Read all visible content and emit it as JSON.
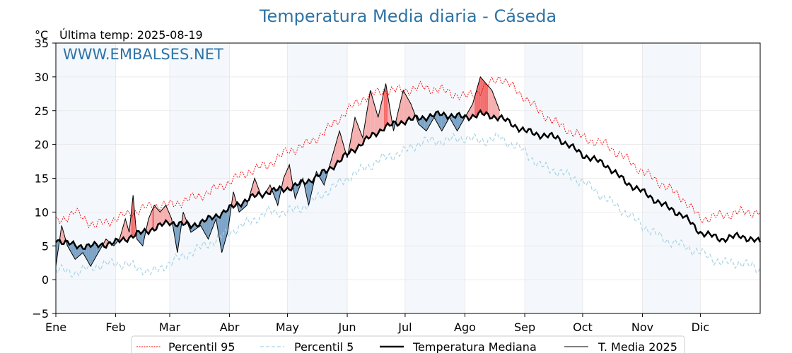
{
  "chart_data": {
    "type": "line",
    "title": "Temperatura Media diaria - Cáseda",
    "unit_label": "°C",
    "last_temp_label": "Última temp: 2025-08-19",
    "watermark": "WWW.EMBALSES.NET",
    "ylim": [
      -5,
      35
    ],
    "y_ticks": [
      -5,
      0,
      5,
      10,
      15,
      20,
      25,
      30,
      35
    ],
    "y_tick_labels": [
      "−5",
      "0",
      "5",
      "10",
      "15",
      "20",
      "25",
      "30",
      "35"
    ],
    "xlim_days": [
      0,
      365
    ],
    "month_labels": [
      "Ene",
      "Feb",
      "Mar",
      "Abr",
      "May",
      "Jun",
      "Jul",
      "Ago",
      "Sep",
      "Oct",
      "Nov",
      "Dic"
    ],
    "month_starts": [
      0,
      31,
      59,
      90,
      120,
      151,
      181,
      212,
      243,
      273,
      304,
      334,
      365
    ],
    "grid": true,
    "legend_position": "bottom-center",
    "colors": {
      "title": "#2e74a6",
      "watermark": "#2e74a6",
      "p95": "#ff0000",
      "p5": "#a9d3e3",
      "median": "#000000",
      "current": "#000000",
      "above_fill": "#f4a6a6",
      "above_fill_strong": "#f25c5c",
      "below_fill": "#6f99c0",
      "month_band": "#dce9f5"
    },
    "series": [
      {
        "name": "Percentil 95",
        "key": "p95",
        "style": "dotted",
        "anchors": [
          [
            0,
            8.5
          ],
          [
            10,
            10
          ],
          [
            20,
            8
          ],
          [
            31,
            9
          ],
          [
            40,
            10
          ],
          [
            50,
            11
          ],
          [
            59,
            11
          ],
          [
            70,
            12
          ],
          [
            80,
            13
          ],
          [
            90,
            14.5
          ],
          [
            100,
            16
          ],
          [
            110,
            17
          ],
          [
            120,
            19
          ],
          [
            130,
            20
          ],
          [
            140,
            22
          ],
          [
            151,
            25
          ],
          [
            160,
            27
          ],
          [
            170,
            28
          ],
          [
            181,
            28
          ],
          [
            190,
            28.5
          ],
          [
            200,
            28
          ],
          [
            212,
            27
          ],
          [
            220,
            28
          ],
          [
            230,
            30
          ],
          [
            243,
            27
          ],
          [
            250,
            25
          ],
          [
            260,
            23
          ],
          [
            273,
            21
          ],
          [
            285,
            20
          ],
          [
            295,
            18
          ],
          [
            304,
            16
          ],
          [
            315,
            14
          ],
          [
            325,
            12
          ],
          [
            334,
            9
          ],
          [
            345,
            9.5
          ],
          [
            355,
            10
          ],
          [
            365,
            10
          ]
        ]
      },
      {
        "name": "Percentil 5",
        "key": "p5",
        "style": "dashed",
        "anchors": [
          [
            0,
            1.5
          ],
          [
            10,
            1
          ],
          [
            20,
            2
          ],
          [
            31,
            2.5
          ],
          [
            40,
            2
          ],
          [
            50,
            1
          ],
          [
            59,
            2.5
          ],
          [
            70,
            4
          ],
          [
            80,
            5.5
          ],
          [
            90,
            7
          ],
          [
            100,
            8.5
          ],
          [
            110,
            10
          ],
          [
            120,
            10
          ],
          [
            130,
            11
          ],
          [
            140,
            13
          ],
          [
            151,
            15
          ],
          [
            160,
            16.5
          ],
          [
            170,
            18
          ],
          [
            181,
            19
          ],
          [
            190,
            20.5
          ],
          [
            200,
            20.5
          ],
          [
            212,
            21
          ],
          [
            220,
            20.5
          ],
          [
            230,
            21
          ],
          [
            243,
            19
          ],
          [
            250,
            17
          ],
          [
            260,
            16
          ],
          [
            273,
            14.5
          ],
          [
            285,
            12
          ],
          [
            295,
            10
          ],
          [
            304,
            8
          ],
          [
            315,
            6
          ],
          [
            325,
            5
          ],
          [
            334,
            4
          ],
          [
            345,
            2.5
          ],
          [
            355,
            2.5
          ],
          [
            365,
            1.5
          ]
        ]
      },
      {
        "name": "Temperatura Mediana",
        "key": "median",
        "style": "solid-thick",
        "anchors": [
          [
            0,
            6
          ],
          [
            10,
            5
          ],
          [
            20,
            5
          ],
          [
            31,
            5.5
          ],
          [
            40,
            6.5
          ],
          [
            50,
            7.5
          ],
          [
            59,
            8.5
          ],
          [
            70,
            8
          ],
          [
            80,
            9
          ],
          [
            90,
            10.5
          ],
          [
            100,
            12
          ],
          [
            110,
            13
          ],
          [
            120,
            13.5
          ],
          [
            130,
            14.5
          ],
          [
            140,
            16
          ],
          [
            151,
            18.5
          ],
          [
            160,
            20.5
          ],
          [
            170,
            22.5
          ],
          [
            181,
            23.5
          ],
          [
            190,
            24
          ],
          [
            200,
            24.5
          ],
          [
            212,
            24
          ],
          [
            220,
            24.5
          ],
          [
            230,
            24
          ],
          [
            243,
            22
          ],
          [
            250,
            21.5
          ],
          [
            260,
            21
          ],
          [
            273,
            18.5
          ],
          [
            285,
            17
          ],
          [
            295,
            14.5
          ],
          [
            304,
            13
          ],
          [
            315,
            11
          ],
          [
            325,
            9.5
          ],
          [
            334,
            7
          ],
          [
            345,
            6
          ],
          [
            355,
            6.5
          ],
          [
            365,
            5.5
          ]
        ]
      },
      {
        "name": "T. Media 2025",
        "key": "current",
        "style": "solid-thin",
        "anchors": [
          [
            0,
            2
          ],
          [
            3,
            8
          ],
          [
            6,
            5
          ],
          [
            10,
            3
          ],
          [
            14,
            4
          ],
          [
            18,
            2
          ],
          [
            22,
            4
          ],
          [
            26,
            6
          ],
          [
            30,
            5
          ],
          [
            33,
            6
          ],
          [
            36,
            9
          ],
          [
            38,
            7
          ],
          [
            40,
            12.5
          ],
          [
            42,
            6
          ],
          [
            45,
            5
          ],
          [
            48,
            9
          ],
          [
            51,
            11
          ],
          [
            54,
            10
          ],
          [
            57,
            11
          ],
          [
            60,
            9
          ],
          [
            63,
            4
          ],
          [
            66,
            10
          ],
          [
            70,
            7
          ],
          [
            75,
            8
          ],
          [
            79,
            6
          ],
          [
            83,
            9
          ],
          [
            86,
            4
          ],
          [
            89,
            7
          ],
          [
            92,
            13
          ],
          [
            95,
            10
          ],
          [
            99,
            11
          ],
          [
            103,
            15
          ],
          [
            107,
            12
          ],
          [
            111,
            14
          ],
          [
            115,
            11
          ],
          [
            118,
            15
          ],
          [
            121,
            17
          ],
          [
            124,
            12
          ],
          [
            128,
            15
          ],
          [
            131,
            11
          ],
          [
            135,
            16
          ],
          [
            139,
            14
          ],
          [
            143,
            18
          ],
          [
            147,
            22
          ],
          [
            151,
            18
          ],
          [
            155,
            24
          ],
          [
            159,
            21
          ],
          [
            163,
            28
          ],
          [
            167,
            24
          ],
          [
            171,
            29
          ],
          [
            175,
            22
          ],
          [
            180,
            28
          ],
          [
            184,
            26
          ],
          [
            188,
            23
          ],
          [
            192,
            22
          ],
          [
            196,
            24
          ],
          [
            200,
            22
          ],
          [
            204,
            24
          ],
          [
            208,
            22
          ],
          [
            212,
            24
          ],
          [
            216,
            26
          ],
          [
            220,
            30
          ],
          [
            223,
            29
          ],
          [
            226,
            28
          ],
          [
            230,
            25
          ]
        ]
      }
    ]
  },
  "legend": {
    "items": [
      {
        "label": "Percentil 95"
      },
      {
        "label": "Percentil 5"
      },
      {
        "label": "Temperatura Mediana"
      },
      {
        "label": "T. Media 2025"
      }
    ]
  }
}
